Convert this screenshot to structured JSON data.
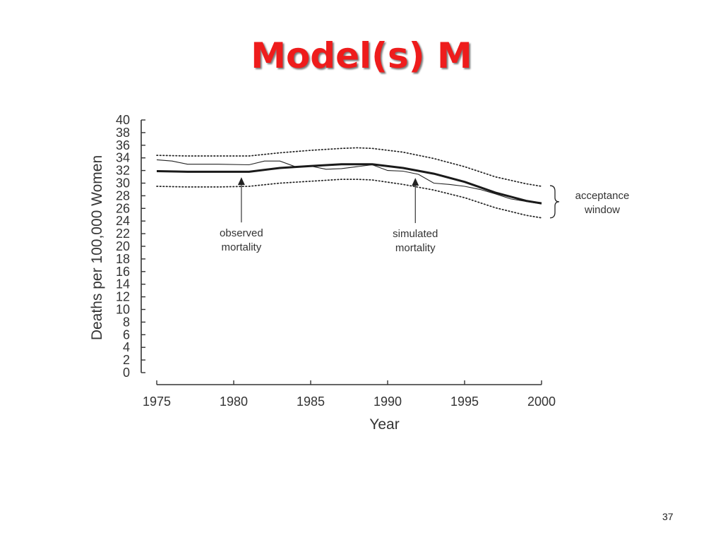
{
  "slide": {
    "title": "Model(s) M",
    "page_number": "37"
  },
  "chart_data": {
    "type": "line",
    "title": "",
    "xlabel": "Year",
    "ylabel": "Deaths per 100,000 Women",
    "xlim": [
      1975,
      2000
    ],
    "ylim": [
      0,
      40
    ],
    "x_ticks": [
      1975,
      1980,
      1985,
      1990,
      1995,
      2000
    ],
    "y_ticks": [
      0,
      2,
      4,
      6,
      8,
      10,
      12,
      14,
      16,
      18,
      20,
      22,
      24,
      26,
      28,
      30,
      32,
      34,
      36,
      38,
      40
    ],
    "grid": false,
    "legend": "none",
    "series": [
      {
        "style": "dotted-upper",
        "x": [
          1975,
          1977,
          1979,
          1981,
          1983,
          1985,
          1987,
          1988,
          1989,
          1991,
          1993,
          1995,
          1997,
          1999,
          2000
        ],
        "y": [
          34.4,
          34.3,
          34.3,
          34.3,
          34.8,
          35.2,
          35.5,
          35.6,
          35.5,
          34.9,
          33.9,
          32.6,
          31.0,
          29.9,
          29.5
        ]
      },
      {
        "style": "thin-observed",
        "x": [
          1975,
          1976,
          1977,
          1979,
          1981,
          1982,
          1983,
          1984,
          1985,
          1986,
          1987,
          1988,
          1989,
          1990,
          1991,
          1992,
          1993,
          1994,
          1995,
          1996,
          1997,
          1998,
          1999,
          2000
        ],
        "y": [
          33.7,
          33.5,
          33.0,
          33.0,
          32.9,
          33.5,
          33.5,
          32.6,
          32.7,
          32.2,
          32.3,
          32.6,
          32.9,
          32.0,
          31.9,
          31.4,
          30.0,
          29.8,
          29.5,
          29.0,
          28.3,
          27.5,
          27.1,
          26.7
        ]
      },
      {
        "style": "thick-simulated",
        "x": [
          1975,
          1977,
          1979,
          1981,
          1983,
          1985,
          1987,
          1989,
          1991,
          1993,
          1995,
          1997,
          1999,
          2000
        ],
        "y": [
          31.9,
          31.8,
          31.8,
          31.8,
          32.4,
          32.7,
          33.0,
          33.0,
          32.4,
          31.5,
          30.2,
          28.5,
          27.2,
          26.8
        ]
      },
      {
        "style": "dotted-lower",
        "x": [
          1975,
          1977,
          1979,
          1981,
          1983,
          1985,
          1987,
          1988,
          1989,
          1991,
          1993,
          1995,
          1997,
          1999,
          2000
        ],
        "y": [
          29.5,
          29.4,
          29.4,
          29.5,
          30.0,
          30.3,
          30.6,
          30.6,
          30.5,
          29.8,
          28.9,
          27.7,
          26.1,
          24.9,
          24.5
        ]
      }
    ],
    "annotations": [
      {
        "id": "observed",
        "lines": [
          "observed",
          "mortality"
        ],
        "arrow_x": 1980.5,
        "arrow_y_tip": 31.6
      },
      {
        "id": "simulated",
        "lines": [
          "simulated",
          "mortality"
        ],
        "arrow_x": 1991.8,
        "arrow_y_tip": 31.5
      },
      {
        "id": "acceptance",
        "lines": [
          "acceptance",
          "window"
        ],
        "brace_y_top": 29.6,
        "brace_y_bottom": 24.5
      }
    ]
  }
}
